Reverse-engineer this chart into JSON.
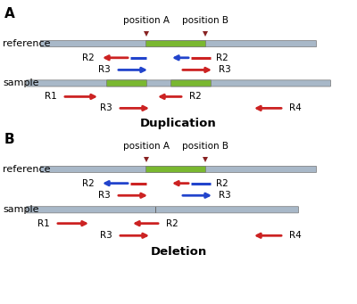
{
  "bg_color": "#ffffff",
  "panel_A_title": "A",
  "panel_B_title": "B",
  "label_posA": "position A",
  "label_posB": "position B",
  "label_reference": "reference",
  "label_sample": "sample",
  "label_duplication": "Duplication",
  "label_deletion": "Deletion",
  "gray_color": "#a8b8c8",
  "green_color": "#7ab830",
  "red_color": "#cc2222",
  "blue_color": "#2244cc",
  "marker_color": "#882222",
  "bar_height": 0.18,
  "fs_text": 8.0,
  "fs_label": 7.5,
  "fs_panel": 11.0,
  "fs_bold": 9.5,
  "xlim": [
    0,
    10
  ],
  "ylim": [
    0,
    10
  ],
  "posA_x": 4.1,
  "posB_x": 5.75,
  "posA_xB": 4.1,
  "posB_xB": 5.75
}
